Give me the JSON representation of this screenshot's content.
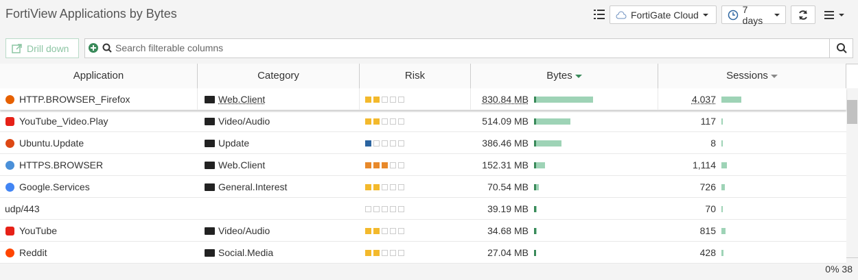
{
  "header": {
    "title": "FortiView Applications by Bytes",
    "source": "FortiGate Cloud",
    "period": "7 days"
  },
  "toolbar": {
    "drill_down": "Drill down",
    "search_placeholder": "Search filterable columns"
  },
  "table": {
    "columns": [
      "Application",
      "Category",
      "Risk",
      "Bytes",
      "Sessions"
    ],
    "risk_colors": [
      "#f3b92c",
      "#2b64a0",
      "#e8892a"
    ],
    "rows": [
      {
        "application": "HTTP.BROWSER_Firefox",
        "category": "Web.Client",
        "risk": 2,
        "risk_color": "#f3b92c",
        "bytes": {
          "value": 830.84,
          "label": "830.84 MB"
        },
        "sessions": {
          "value": 4037,
          "label": "4,037"
        }
      },
      {
        "application": "YouTube_Video.Play",
        "category": "Video/Audio",
        "risk": 2,
        "risk_color": "#f3b92c",
        "bytes": {
          "value": 514.09,
          "label": "514.09 MB"
        },
        "sessions": 117
      },
      {
        "application": "Ubuntu.Update",
        "category": "Update",
        "risk": 1,
        "risk_color": "#2b64a0",
        "bytes": {
          "value": 386.46,
          "label": "386.46 MB"
        },
        "sessions": 8
      },
      {
        "application": "HTTPS.BROWSER",
        "category": "Web.Client",
        "risk": 3,
        "risk_color": "#e8892a",
        "bytes": {
          "value": 152.31,
          "label": "152.31 MB"
        },
        "sessions": {
          "value": 1114,
          "label": "1,114"
        }
      },
      {
        "application": "Google.Services",
        "category": "General.Interest",
        "risk": 2,
        "risk_color": "#f3b92c",
        "bytes": {
          "value": 70.54,
          "label": "70.54 MB"
        },
        "sessions": 726
      },
      {
        "application": "udp/443",
        "category": null,
        "risk": 0,
        "risk_color": null,
        "bytes": {
          "value": 39.19,
          "label": "39.19 MB"
        },
        "sessions": 70
      },
      {
        "application": "YouTube",
        "category": "Video/Audio",
        "risk": 2,
        "risk_color": "#f3b92c",
        "bytes": {
          "value": 34.68,
          "label": "34.68 MB"
        },
        "sessions": 815
      },
      {
        "application": "Reddit",
        "category": "Social.Media",
        "risk": 2,
        "risk_color": "#f3b92c",
        "bytes": {
          "value": 27.04,
          "label": "27.04 MB"
        },
        "sessions": 428
      }
    ]
  },
  "footer": {
    "status": "0% 38"
  }
}
